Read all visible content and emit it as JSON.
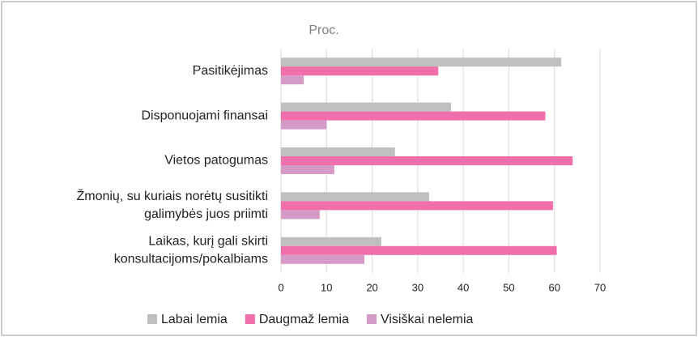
{
  "chart_data": {
    "type": "hbar",
    "title": "Proc.",
    "categories": [
      [
        "Pasitikėjimas"
      ],
      [
        "Disponuojami finansai"
      ],
      [
        "Vietos patogumas"
      ],
      [
        "Žmonių, su kuriais norėtų susitikti",
        "galimybės juos priimti"
      ],
      [
        "Laikas, kurį gali skirti",
        "konsultacijoms/pokalbiams"
      ]
    ],
    "series": [
      {
        "name": "Labai lemia",
        "color": "#bfbfbf",
        "values": [
          61.5,
          37.3,
          25,
          32.5,
          22
        ]
      },
      {
        "name": "Daugmaž lemia",
        "color": "#f06ea9",
        "values": [
          34.5,
          58,
          64,
          59.7,
          60.5
        ]
      },
      {
        "name": "Visiškai nelemia",
        "color": "#d69ac7",
        "values": [
          5,
          10,
          11.7,
          8.5,
          18.3
        ]
      }
    ],
    "xlim": [
      0,
      70
    ],
    "xticks": [
      0,
      10,
      20,
      30,
      40,
      50,
      60,
      70
    ],
    "grid": true,
    "legend": "bottom"
  }
}
